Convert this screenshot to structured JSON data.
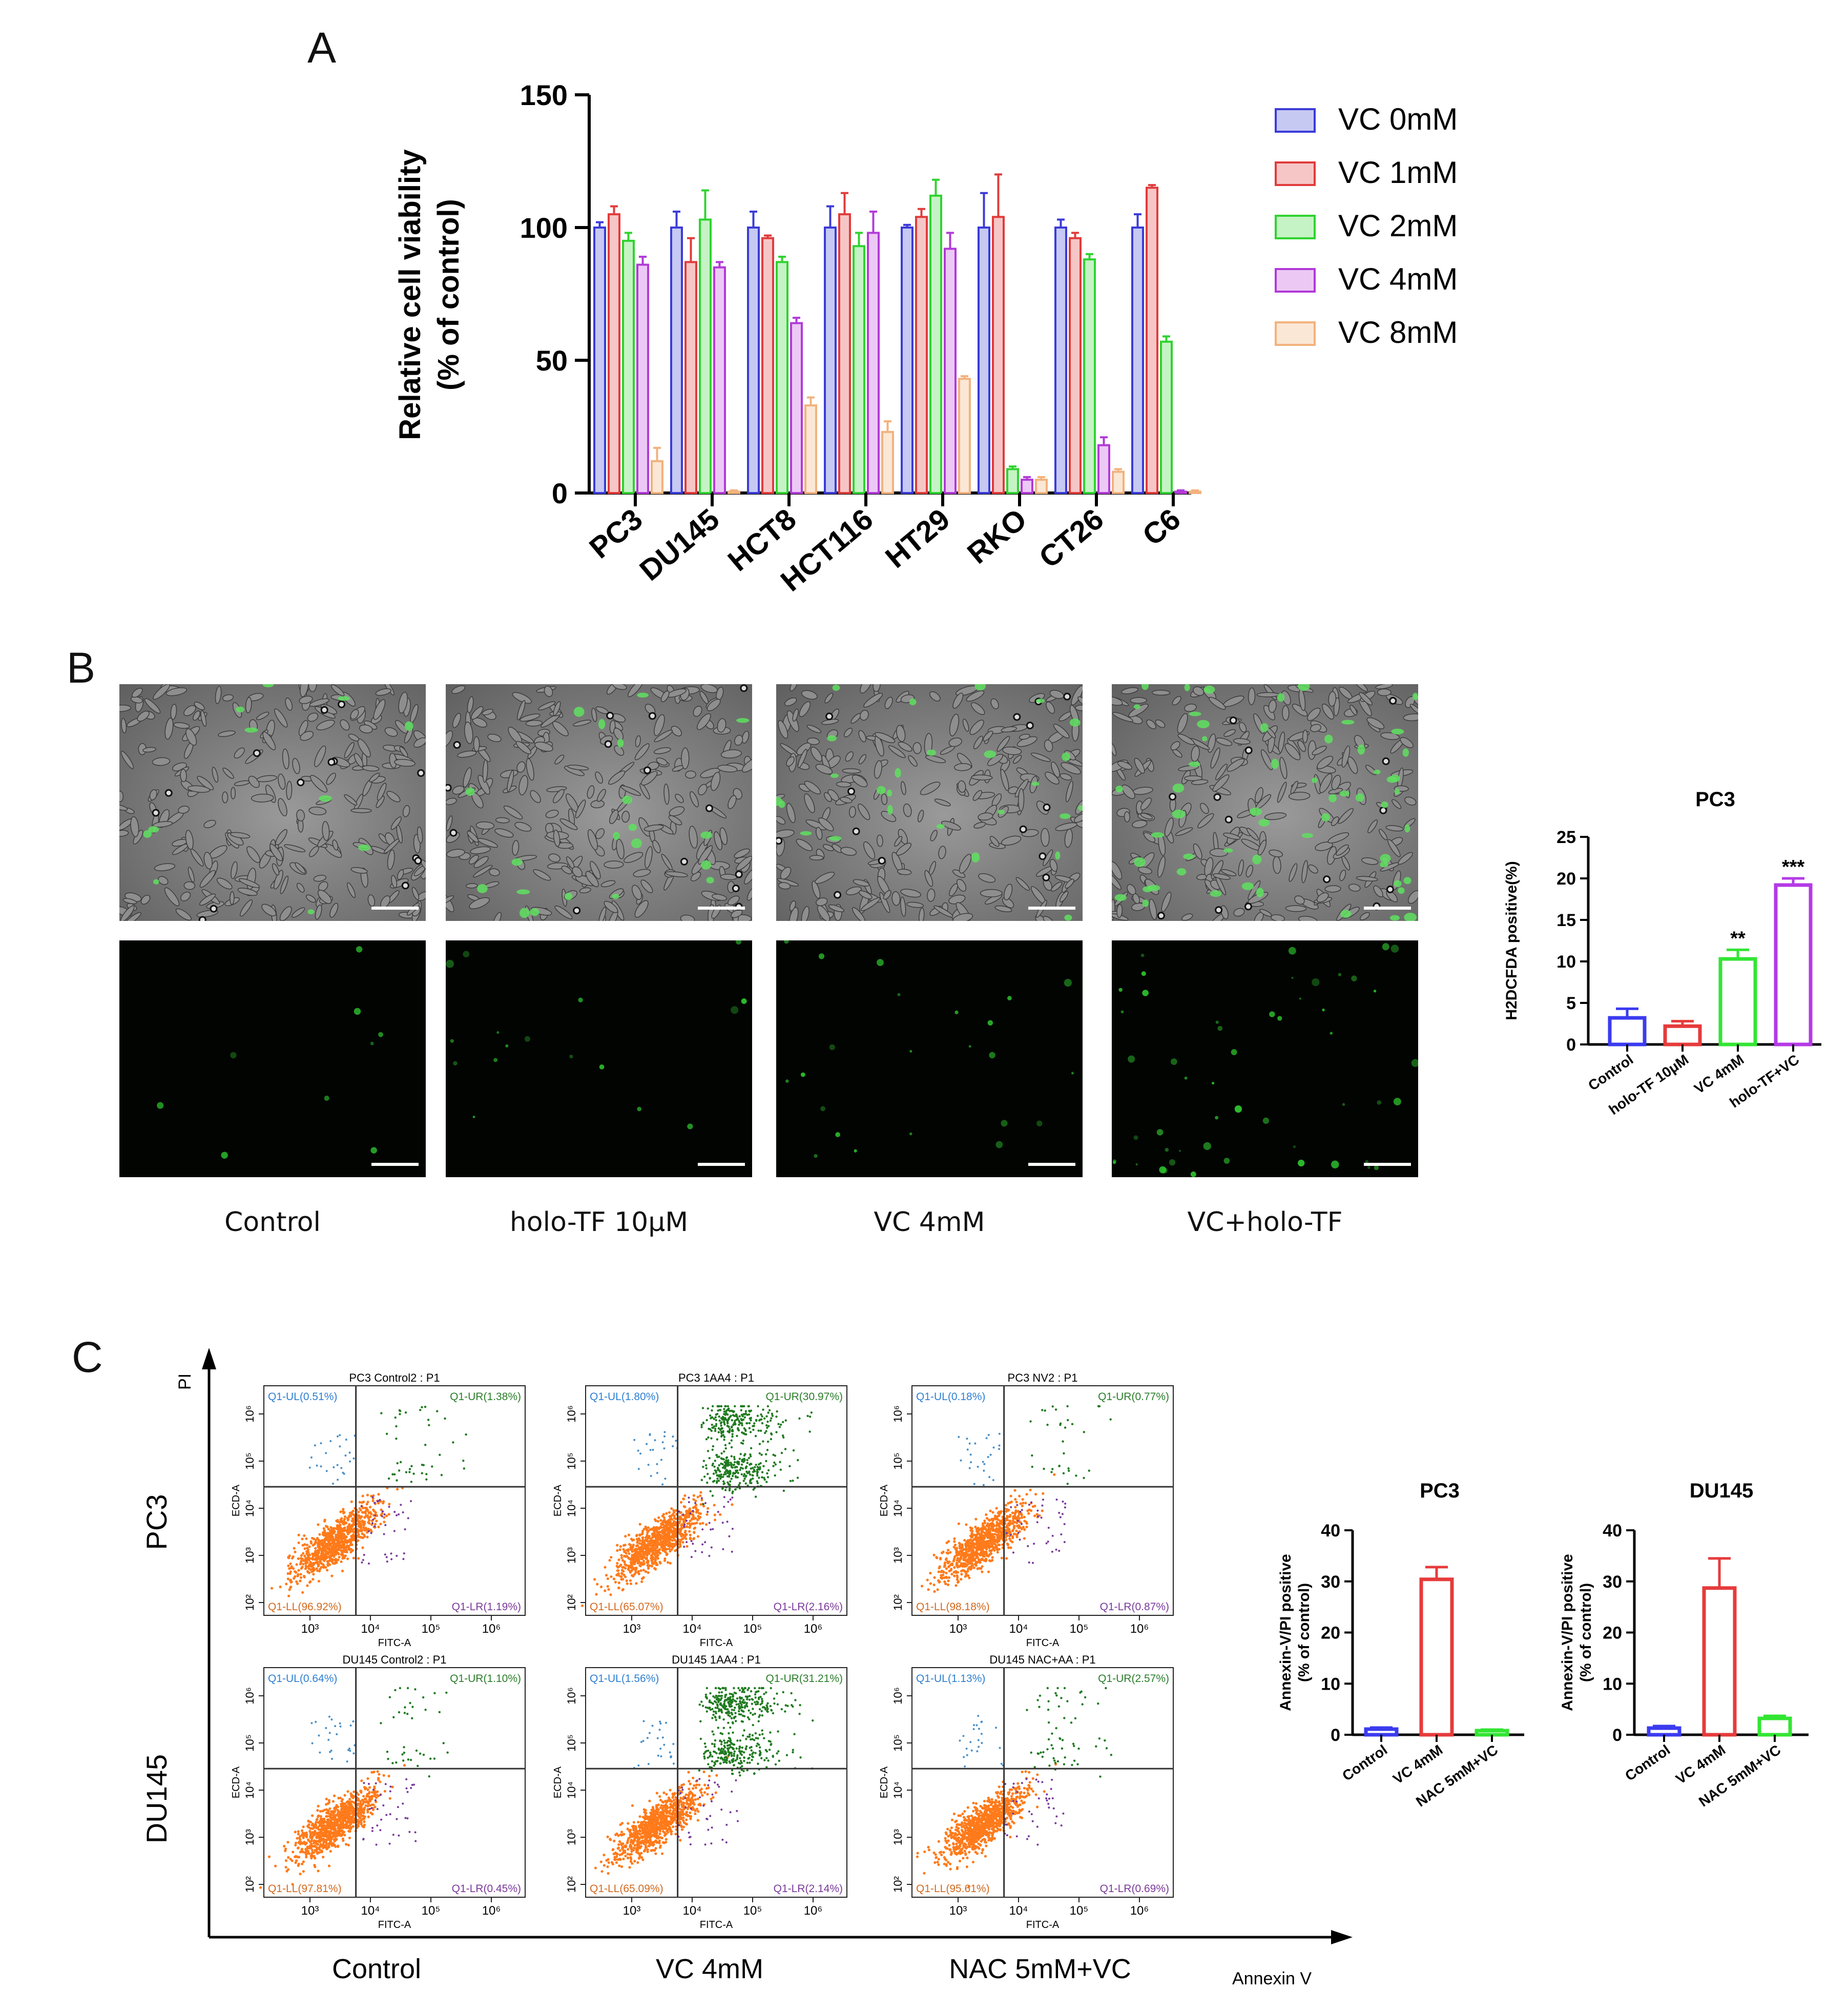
{
  "panel_labels": {
    "a": "A",
    "b": "B",
    "c": "C"
  },
  "chart_data": [
    {
      "id": "A",
      "type": "bar",
      "title": "",
      "ylabel_line1": "Relative cell viability",
      "ylabel_line2": "(% of control)",
      "xlabel": "",
      "ylim": [
        0,
        150
      ],
      "yticks": [
        "0",
        "50",
        "100",
        "150"
      ],
      "categories": [
        "PC3",
        "DU145",
        "HCT8",
        "HCT116",
        "HT29",
        "RKO",
        "CT26",
        "C6"
      ],
      "series": [
        {
          "name": "VC 0mM",
          "color": "#3b3bd8",
          "fill": "#c6c9f2",
          "values": [
            100,
            100,
            100,
            100,
            100,
            100,
            100,
            100
          ],
          "errors": [
            2,
            6,
            6,
            8,
            1,
            13,
            3,
            5
          ]
        },
        {
          "name": "VC 1mM",
          "color": "#e13b3b",
          "fill": "#f6c6c6",
          "values": [
            105,
            87,
            96,
            105,
            104,
            104,
            96,
            115
          ],
          "errors": [
            3,
            9,
            1,
            8,
            3,
            16,
            2,
            1
          ]
        },
        {
          "name": "VC 2mM",
          "color": "#2fd32f",
          "fill": "#c5f3c5",
          "values": [
            95,
            103,
            87,
            93,
            112,
            9,
            88,
            57
          ],
          "errors": [
            3,
            11,
            2,
            5,
            6,
            1,
            2,
            2
          ]
        },
        {
          "name": "VC 4mM",
          "color": "#b23ad8",
          "fill": "#ecc9f5",
          "values": [
            86,
            85,
            64,
            98,
            92,
            5,
            18,
            0.5
          ],
          "errors": [
            3,
            2,
            2,
            8,
            6,
            1,
            3,
            0.5
          ]
        },
        {
          "name": "VC 8mM",
          "color": "#f2b27e",
          "fill": "#fbe7d5",
          "values": [
            12,
            0.5,
            33,
            23,
            43,
            5,
            8,
            0.5
          ],
          "errors": [
            5,
            0.5,
            3,
            4,
            1,
            1,
            1,
            0.5
          ]
        }
      ]
    },
    {
      "id": "B-PC3",
      "type": "bar",
      "title": "PC3",
      "ylabel": "H2DCFDA positive(%)",
      "ylim": [
        0,
        25
      ],
      "yticks": [
        "0",
        "5",
        "10",
        "15",
        "20",
        "25"
      ],
      "categories": [
        "Control",
        "holo-TF 10μM",
        "VC 4mM",
        "holo-TF+VC"
      ],
      "values": [
        3.2,
        2.2,
        10.3,
        19.2
      ],
      "errors": [
        1.1,
        0.6,
        1.1,
        0.8
      ],
      "colors": [
        "#3b3bf0",
        "#e63b3b",
        "#33e533",
        "#b43ae6"
      ],
      "significance": [
        "",
        "",
        "**",
        "***"
      ]
    },
    {
      "id": "C-PC3",
      "type": "bar",
      "title": "PC3",
      "ylabel_line1": "Annexin-V/PI positive",
      "ylabel_line2": "(% of control)",
      "ylim": [
        0,
        40
      ],
      "yticks": [
        "0",
        "10",
        "20",
        "30",
        "40"
      ],
      "categories": [
        "Control",
        "VC 4mM",
        "NAC 5mM+VC"
      ],
      "values": [
        1.1,
        30.4,
        0.8
      ],
      "errors": [
        0.3,
        2.4,
        0.2
      ],
      "colors": [
        "#3b3bf0",
        "#e63b3b",
        "#33e533"
      ]
    },
    {
      "id": "C-DU145",
      "type": "bar",
      "title": "DU145",
      "ylabel_line1": "Annexin-V/PI positive",
      "ylabel_line2": "(% of control)",
      "ylim": [
        0,
        40
      ],
      "yticks": [
        "0",
        "10",
        "20",
        "30",
        "40"
      ],
      "categories": [
        "Control",
        "VC 4mM",
        "NAC 5mM+VC"
      ],
      "values": [
        1.3,
        28.7,
        3.2
      ],
      "errors": [
        0.4,
        5.8,
        0.5
      ],
      "colors": [
        "#3b3bf0",
        "#e63b3b",
        "#33e533"
      ]
    }
  ],
  "microscopy": {
    "conditions": [
      "Control",
      "holo-TF 10μM",
      "VC 4mM",
      "VC+holo-TF"
    ]
  },
  "flow": {
    "axis_y": "PI",
    "axis_x": "Annexin V",
    "rows": [
      "PC3",
      "DU145"
    ],
    "columns": [
      "Control",
      "VC 4mM",
      "NAC 5mM+VC"
    ],
    "x_axis_label": "FITC-A",
    "y_axis_label": "ECD-A",
    "x_ticks": [
      "10³",
      "10⁴",
      "10⁵",
      "10⁶"
    ],
    "y_ticks": [
      "10²",
      "10³",
      "10⁴",
      "10⁵",
      "10⁶"
    ],
    "plots": [
      {
        "title": "PC3 Control2 : P1",
        "ul": "Q1-UL(0.51%)",
        "ur": "Q1-UR(1.38%)",
        "ll": "Q1-LL(96.92%)",
        "lr": "Q1-LR(1.19%)",
        "ur_level": 0.0138
      },
      {
        "title": "PC3 1AA4 : P1",
        "ul": "Q1-UL(1.80%)",
        "ur": "Q1-UR(30.97%)",
        "ll": "Q1-LL(65.07%)",
        "lr": "Q1-LR(2.16%)",
        "ur_level": 0.3097
      },
      {
        "title": "PC3 NV2 : P1",
        "ul": "Q1-UL(0.18%)",
        "ur": "Q1-UR(0.77%)",
        "ll": "Q1-LL(98.18%)",
        "lr": "Q1-LR(0.87%)",
        "ur_level": 0.0077
      },
      {
        "title": "DU145 Control2 : P1",
        "ul": "Q1-UL(0.64%)",
        "ur": "Q1-UR(1.10%)",
        "ll": "Q1-LL(97.81%)",
        "lr": "Q1-LR(0.45%)",
        "ur_level": 0.011
      },
      {
        "title": "DU145 1AA4 : P1",
        "ul": "Q1-UL(1.56%)",
        "ur": "Q1-UR(31.21%)",
        "ll": "Q1-LL(65.09%)",
        "lr": "Q1-LR(2.14%)",
        "ur_level": 0.3121
      },
      {
        "title": "DU145 NAC+AA : P1",
        "ul": "Q1-UL(1.13%)",
        "ur": "Q1-UR(2.57%)",
        "ll": "Q1-LL(95.61%)",
        "lr": "Q1-LR(0.69%)",
        "ur_level": 0.0257
      }
    ]
  },
  "colors": {
    "scatter_main": "#ff7a1a",
    "scatter_ur": "#1f7a1f",
    "scatter_lr": "#7a3a9a",
    "scatter_ul": "#4a90c8"
  }
}
